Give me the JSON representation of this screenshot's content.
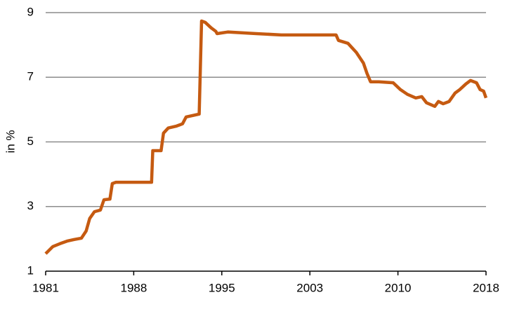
{
  "chart_data": {
    "type": "line",
    "y_label": "in %",
    "x": [
      1981,
      1981.6,
      1982.2,
      1982.8,
      1983.4,
      1984.0,
      1984.4,
      1984.7,
      1985.1,
      1985.6,
      1985.9,
      1986.4,
      1986.6,
      1986.9,
      1989.9,
      1990.0,
      1990.7,
      1990.9,
      1991.3,
      1992.0,
      1992.5,
      1992.8,
      1993.4,
      1993.9,
      1994.1,
      1994.4,
      1994.9,
      1995.3,
      1995.4,
      1996.3,
      1998.7,
      2000.8,
      2005.4,
      2005.6,
      2006.4,
      2007.1,
      2007.7,
      2008.0,
      2008.3,
      2009.0,
      2010.2,
      2010.8,
      2011.4,
      2012.1,
      2012.6,
      2013.0,
      2013.7,
      2014.0,
      2014.4,
      2014.9,
      2015.4,
      2015.8,
      2016.3,
      2016.7,
      2017.2,
      2017.5,
      2017.8,
      2018.0
    ],
    "series": [
      {
        "color": "#c55a11",
        "values": [
          1.54,
          1.76,
          1.85,
          1.93,
          1.98,
          2.02,
          2.24,
          2.63,
          2.84,
          2.89,
          3.21,
          3.23,
          3.71,
          3.75,
          3.75,
          4.73,
          4.73,
          5.27,
          5.43,
          5.49,
          5.56,
          5.77,
          5.82,
          5.86,
          8.74,
          8.7,
          8.53,
          8.42,
          8.35,
          8.4,
          8.35,
          8.31,
          8.31,
          8.14,
          8.05,
          7.77,
          7.44,
          7.12,
          6.86,
          6.86,
          6.83,
          6.62,
          6.47,
          6.36,
          6.4,
          6.21,
          6.1,
          6.25,
          6.18,
          6.25,
          6.51,
          6.62,
          6.79,
          6.9,
          6.83,
          6.62,
          6.57,
          6.36
        ]
      }
    ],
    "xlim": [
      1981,
      2018
    ],
    "xticks": [
      1981,
      {
        "value": 1988.4,
        "label": "1988"
      },
      {
        "value": 1995.8,
        "label": "1995"
      },
      {
        "value": 2003.2,
        "label": "2003"
      },
      {
        "value": 2010.6,
        "label": "2010"
      },
      2018
    ],
    "ylim": [
      1,
      9
    ],
    "yticks": [
      1,
      3,
      5,
      7,
      9
    ],
    "grid": true
  }
}
